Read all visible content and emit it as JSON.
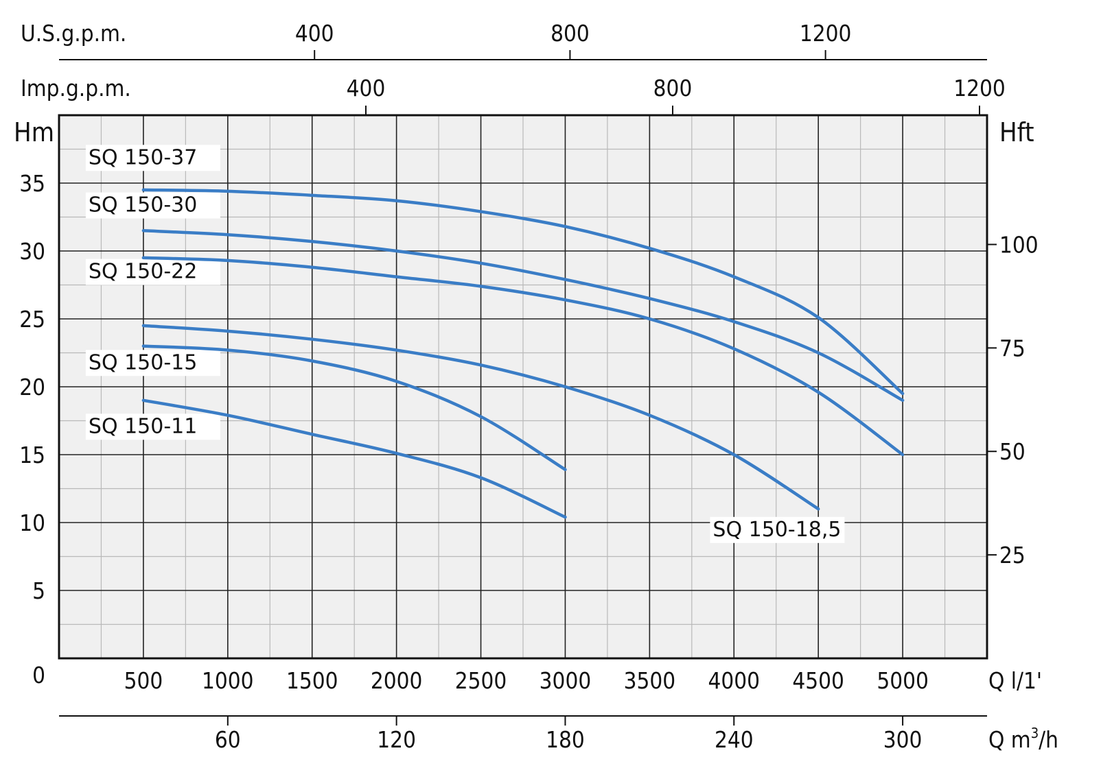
{
  "chart_data": {
    "type": "line",
    "x_unit": "l/min",
    "y_unit": "m",
    "xlim": [
      0,
      5500
    ],
    "ylim": [
      0,
      40
    ],
    "grid": true,
    "axes": {
      "left": {
        "label": "Hm",
        "ticks": [
          {
            "value": 0,
            "label": "0"
          },
          {
            "value": 5,
            "label": "5"
          },
          {
            "value": 10,
            "label": "10"
          },
          {
            "value": 15,
            "label": "15"
          },
          {
            "value": 20,
            "label": "20"
          },
          {
            "value": 25,
            "label": "25"
          },
          {
            "value": 30,
            "label": "30"
          },
          {
            "value": 35,
            "label": "35"
          }
        ]
      },
      "right": {
        "label": "Hft",
        "ticks": [
          {
            "value": 25,
            "label": "25"
          },
          {
            "value": 50,
            "label": "50"
          },
          {
            "value": 75,
            "label": "75"
          },
          {
            "value": 100,
            "label": "100"
          }
        ]
      },
      "bottom": {
        "label": "Q l/1'",
        "ticks": [
          {
            "value": 500,
            "label": "500"
          },
          {
            "value": 1000,
            "label": "1000"
          },
          {
            "value": 1500,
            "label": "1500"
          },
          {
            "value": 2000,
            "label": "2000"
          },
          {
            "value": 2500,
            "label": "2500"
          },
          {
            "value": 3000,
            "label": "3000"
          },
          {
            "value": 3500,
            "label": "3500"
          },
          {
            "value": 4000,
            "label": "4000"
          },
          {
            "value": 4500,
            "label": "4500"
          },
          {
            "value": 5000,
            "label": "5000"
          }
        ]
      },
      "bottom2": {
        "label_prefix": "Q m",
        "label_sup": "3",
        "label_suffix": "/h",
        "ticks": [
          {
            "value": 60,
            "label": "60"
          },
          {
            "value": 120,
            "label": "120"
          },
          {
            "value": 180,
            "label": "180"
          },
          {
            "value": 240,
            "label": "240"
          },
          {
            "value": 300,
            "label": "300"
          }
        ]
      },
      "top_us": {
        "label": "U.S.g.p.m.",
        "ticks": [
          {
            "value": 400,
            "label": "400"
          },
          {
            "value": 800,
            "label": "800"
          },
          {
            "value": 1200,
            "label": "1200"
          }
        ]
      },
      "top_imp": {
        "label": "Imp.g.p.m.",
        "ticks": [
          {
            "value": 400,
            "label": "400"
          },
          {
            "value": 800,
            "label": "800"
          },
          {
            "value": 1200,
            "label": "1200"
          }
        ]
      }
    },
    "series": [
      {
        "name": "SQ 150-37",
        "label_at": {
          "x": 500,
          "y": 36.4
        },
        "x": [
          500,
          1000,
          1500,
          2000,
          2500,
          3000,
          3500,
          4000,
          4500,
          5000
        ],
        "y": [
          34.5,
          34.4,
          34.1,
          33.7,
          32.9,
          31.8,
          30.2,
          28.1,
          25.1,
          19.5
        ]
      },
      {
        "name": "SQ 150-30",
        "label_at": {
          "x": 500,
          "y": 32.9
        },
        "x": [
          500,
          1000,
          1500,
          2000,
          2500,
          3000,
          3500,
          4000,
          4500,
          5000
        ],
        "y": [
          31.5,
          31.2,
          30.7,
          30.0,
          29.1,
          27.9,
          26.5,
          24.8,
          22.5,
          19.0
        ]
      },
      {
        "name": "SQ 150-22",
        "label_at": {
          "x": 500,
          "y": 28.0
        },
        "x": [
          500,
          1000,
          1500,
          2000,
          2500,
          3000,
          3500,
          4000,
          4500,
          5000
        ],
        "y": [
          29.5,
          29.3,
          28.8,
          28.1,
          27.4,
          26.4,
          25.0,
          22.8,
          19.6,
          15.0
        ]
      },
      {
        "name": "SQ 150-18,5",
        "label_at": {
          "x": 4200,
          "y": 9.0
        },
        "x": [
          500,
          1000,
          1500,
          2000,
          2500,
          3000,
          3500,
          4000,
          4500
        ],
        "y": [
          24.5,
          24.1,
          23.5,
          22.7,
          21.6,
          20.0,
          17.9,
          15.0,
          11.0
        ]
      },
      {
        "name": "SQ 150-15",
        "label_at": {
          "x": 500,
          "y": 21.3
        },
        "x": [
          500,
          1000,
          1500,
          2000,
          2500,
          3000
        ],
        "y": [
          23.0,
          22.7,
          21.9,
          20.4,
          17.8,
          13.9
        ]
      },
      {
        "name": "SQ 150-11",
        "label_at": {
          "x": 500,
          "y": 16.6
        },
        "x": [
          500,
          1000,
          1500,
          2000,
          2500,
          3000
        ],
        "y": [
          19.0,
          17.9,
          16.5,
          15.1,
          13.3,
          10.4
        ]
      }
    ],
    "colors": {
      "curve": "#3a7dc6",
      "plot_bg": "#f0f0f0",
      "grid_major": "#222222",
      "grid_minor": "#b9b9b9"
    }
  }
}
